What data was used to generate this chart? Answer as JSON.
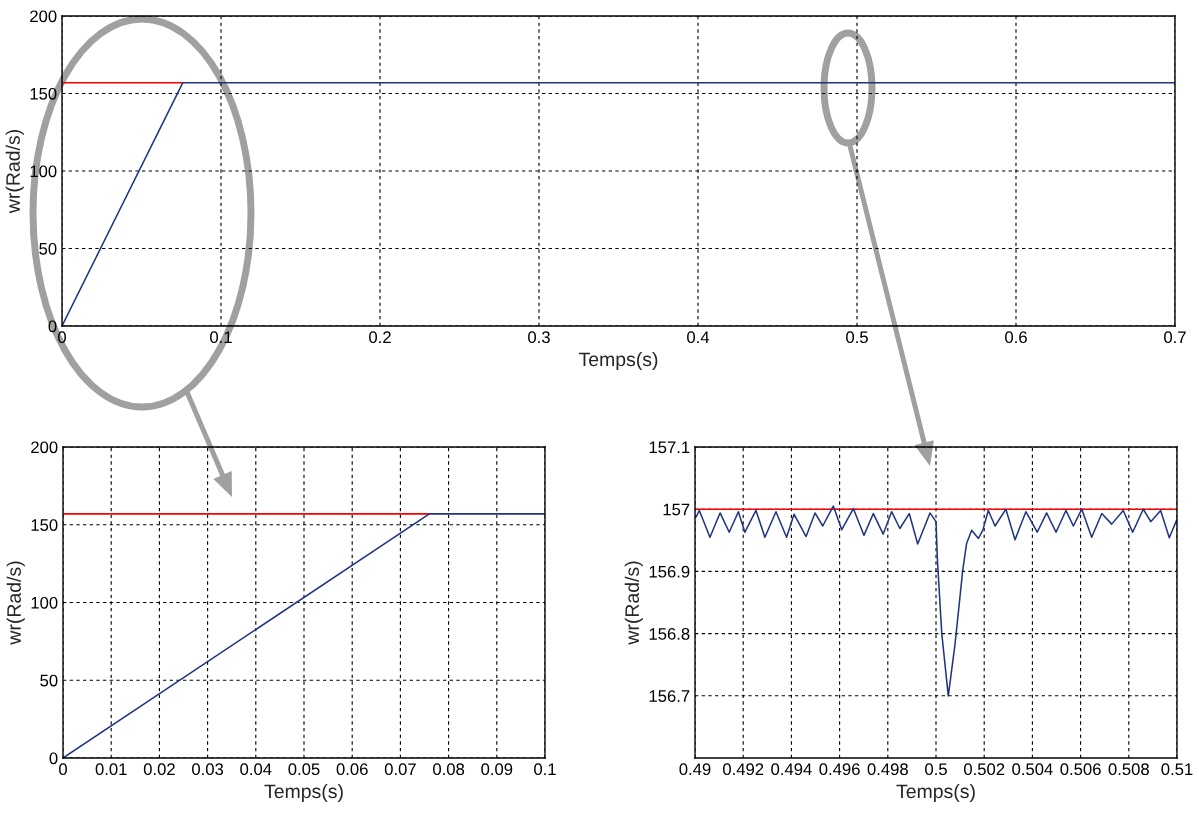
{
  "chart_data": [
    {
      "type": "line",
      "xlabel": "Temps(s)",
      "ylabel": "wr(Rad/s)",
      "xlim": [
        0,
        0.7
      ],
      "ylim": [
        0,
        200
      ],
      "xticks": [
        0,
        0.1,
        0.2,
        0.3,
        0.4,
        0.5,
        0.6,
        0.7
      ],
      "yticks": [
        0,
        50,
        100,
        150,
        200
      ],
      "grid": true,
      "line_style": "solid",
      "marker": "none",
      "series": [
        {
          "color": "#ff0000",
          "x": [
            0,
            0.076
          ],
          "values": [
            157,
            157
          ]
        },
        {
          "color": "#1f3580",
          "x": [
            0,
            0.076,
            0.7
          ],
          "values": [
            0,
            157,
            157
          ]
        }
      ]
    },
    {
      "type": "line",
      "xlabel": "Temps(s)",
      "ylabel": "wr(Rad/s)",
      "xlim": [
        0,
        0.1
      ],
      "ylim": [
        0,
        200
      ],
      "xticks": [
        0,
        0.01,
        0.02,
        0.03,
        0.04,
        0.05,
        0.06,
        0.07,
        0.08,
        0.09,
        0.1
      ],
      "yticks": [
        0,
        50,
        100,
        150,
        200
      ],
      "grid": true,
      "line_style": "solid",
      "marker": "none",
      "series": [
        {
          "color": "#ff0000",
          "x": [
            0,
            0.076
          ],
          "values": [
            157,
            157
          ]
        },
        {
          "color": "#1f3580",
          "x": [
            0,
            0.076,
            0.1
          ],
          "values": [
            0,
            157,
            157
          ]
        }
      ]
    },
    {
      "type": "line",
      "xlabel": "Temps(s)",
      "ylabel": "wr(Rad/s)",
      "xlim": [
        0.49,
        0.51
      ],
      "ylim": [
        156.6,
        157.1
      ],
      "xticks": [
        0.49,
        0.492,
        0.494,
        0.496,
        0.498,
        0.5,
        0.502,
        0.504,
        0.506,
        0.508,
        0.51
      ],
      "yticks": [
        156.7,
        156.8,
        156.9,
        157,
        157.1
      ],
      "grid": true,
      "line_style": "solid",
      "marker": "none",
      "series": [
        {
          "color": "#ff0000",
          "x": [
            0.49,
            0.51
          ],
          "values": [
            157,
            157
          ]
        },
        {
          "color": "#1f3580",
          "x": [
            0.49004,
            0.49018,
            0.49062,
            0.49104,
            0.49142,
            0.4918,
            0.49207,
            0.49253,
            0.4929,
            0.49336,
            0.4938,
            0.49411,
            0.49461,
            0.49498,
            0.4953,
            0.49574,
            0.49609,
            0.49657,
            0.49701,
            0.4974,
            0.49781,
            0.49816,
            0.4985,
            0.49889,
            0.49924,
            0.49975,
            0.5,
            0.50006,
            0.50024,
            0.50051,
            0.50079,
            0.50111,
            0.50127,
            0.50148,
            0.50176,
            0.50194,
            0.50217,
            0.50245,
            0.5029,
            0.50328,
            0.50373,
            0.5042,
            0.50459,
            0.50498,
            0.50539,
            0.5057,
            0.50605,
            0.50646,
            0.50688,
            0.50729,
            0.50777,
            0.50816,
            0.5086,
            0.50891,
            0.50932,
            0.50968,
            0.50999
          ],
          "values": [
            156.987,
            156.998,
            156.955,
            156.994,
            156.963,
            156.996,
            156.963,
            156.998,
            156.955,
            156.996,
            156.955,
            156.992,
            156.956,
            156.994,
            156.973,
            157.005,
            156.967,
            157.001,
            156.958,
            156.993,
            156.96,
            156.996,
            156.969,
            156.993,
            156.944,
            156.994,
            156.98,
            156.918,
            156.8,
            156.7,
            156.783,
            156.902,
            156.945,
            156.966,
            156.953,
            156.966,
            156.998,
            156.973,
            157.0,
            156.951,
            156.996,
            156.963,
            156.994,
            156.963,
            156.998,
            156.973,
            157.0,
            156.955,
            156.993,
            156.976,
            156.998,
            156.963,
            157.0,
            156.98,
            156.998,
            156.954,
            156.983
          ]
        }
      ]
    }
  ]
}
